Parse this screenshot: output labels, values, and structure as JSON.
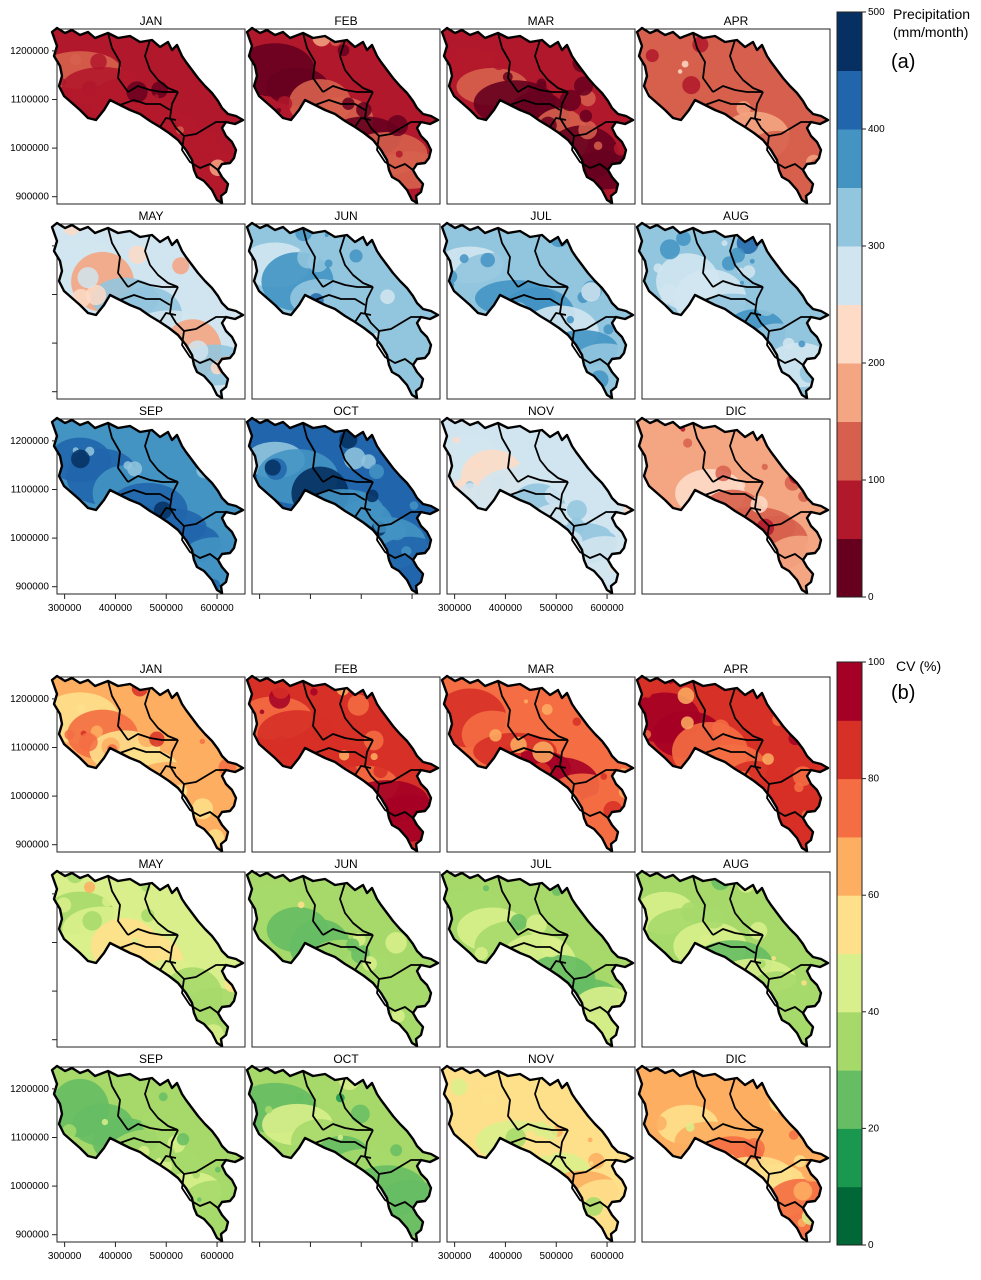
{
  "months": [
    "JAN",
    "FEB",
    "MAR",
    "APR",
    "MAY",
    "JUN",
    "JUL",
    "AUG",
    "SEP",
    "OCT",
    "NOV",
    "DIC"
  ],
  "x_ticks": [
    300000,
    400000,
    500000,
    600000
  ],
  "y_ticks": [
    900000,
    1000000,
    1100000,
    1200000
  ],
  "x_range": [
    285000,
    655000
  ],
  "y_range": [
    885000,
    1245000
  ],
  "panel_a": {
    "label": "(a)",
    "legend_title_line1": "Precipitation",
    "legend_title_line2": "(mm/month)",
    "scale_range": [
      0,
      500
    ],
    "scale_ticks": [
      0,
      100,
      200,
      300,
      400,
      500
    ],
    "colors": [
      "#67001f",
      "#b2182b",
      "#d6604d",
      "#f4a582",
      "#fddbc7",
      "#d1e5f0",
      "#92c5de",
      "#4393c3",
      "#2166ac",
      "#053061"
    ],
    "month_level": [
      1.2,
      1.1,
      1.0,
      2.2,
      4.6,
      6.2,
      6.0,
      6.3,
      7.2,
      7.5,
      5.2,
      2.8
    ]
  },
  "panel_b": {
    "label": "(b)",
    "legend_title": "CV (%)",
    "scale_range": [
      0,
      100
    ],
    "scale_ticks": [
      0,
      20,
      40,
      60,
      80,
      100
    ],
    "colors": [
      "#006837",
      "#1a9850",
      "#66bd63",
      "#a6d96a",
      "#d9ef8b",
      "#fee08b",
      "#fdae61",
      "#f46d43",
      "#d73027",
      "#a50026"
    ],
    "month_level": [
      6.3,
      7.7,
      7.3,
      7.6,
      4.2,
      3.1,
      3.0,
      3.2,
      2.7,
      2.8,
      4.7,
      5.8
    ]
  }
}
